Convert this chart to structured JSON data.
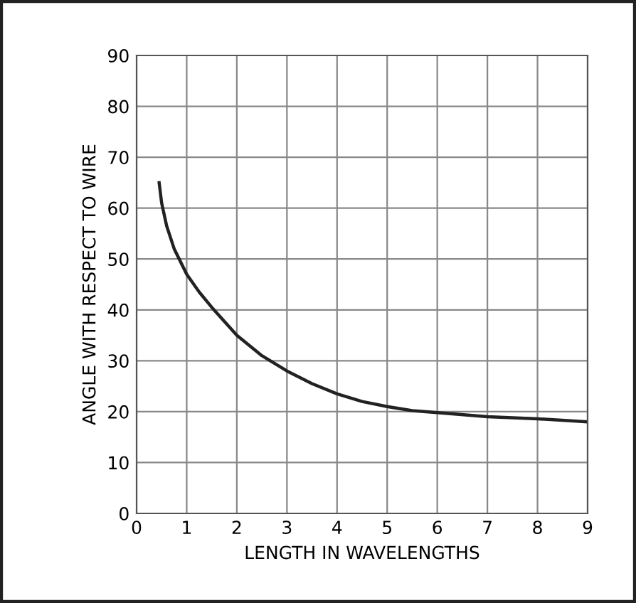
{
  "chart_data": {
    "type": "line",
    "xlabel": "LENGTH IN WAVELENGTHS",
    "ylabel": "ANGLE WITH RESPECT TO WIRE",
    "x": [
      0.45,
      0.5,
      0.6,
      0.75,
      1,
      1.25,
      1.5,
      2,
      2.5,
      3,
      3.5,
      4,
      4.5,
      5,
      5.5,
      6,
      7,
      8,
      9
    ],
    "series": [
      {
        "color": "#222222",
        "values": [
          65,
          61,
          56.5,
          52,
          47,
          43.5,
          40.5,
          35,
          31,
          28,
          25.5,
          23.5,
          22,
          21,
          20.2,
          19.8,
          19,
          18.6,
          18
        ]
      }
    ],
    "xlim": [
      0,
      9
    ],
    "ylim": [
      0,
      90
    ],
    "xticks": [
      0,
      1,
      2,
      3,
      4,
      5,
      6,
      7,
      8,
      9
    ],
    "yticks": [
      0,
      10,
      20,
      30,
      40,
      50,
      60,
      70,
      80,
      90
    ],
    "grid": true,
    "marker": "none",
    "line_style": "solid"
  }
}
